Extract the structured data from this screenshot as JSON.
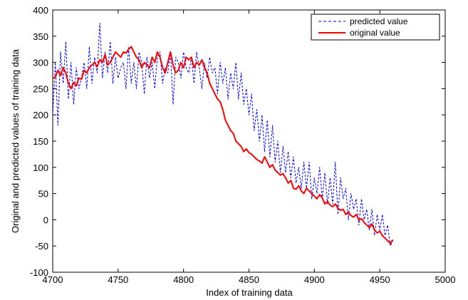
{
  "chart_data": {
    "type": "line",
    "title": "",
    "xlabel": "Index of training data",
    "ylabel": "Original and predicted values of training data",
    "xlim": [
      4700,
      5000
    ],
    "ylim": [
      -100,
      400
    ],
    "xticks": [
      4700,
      4750,
      4800,
      4850,
      4900,
      4950,
      5000
    ],
    "yticks": [
      -100,
      -50,
      0,
      50,
      100,
      150,
      200,
      250,
      300,
      350,
      400
    ],
    "grid": false,
    "legend_position": "top-right",
    "series": [
      {
        "name": "predicted value",
        "color": "#0000ff",
        "style": "dashed",
        "x": [
          4700,
          4702,
          4704,
          4706,
          4708,
          4710,
          4712,
          4714,
          4716,
          4718,
          4720,
          4722,
          4724,
          4726,
          4728,
          4730,
          4732,
          4734,
          4736,
          4738,
          4740,
          4742,
          4744,
          4746,
          4748,
          4750,
          4752,
          4754,
          4756,
          4758,
          4760,
          4762,
          4764,
          4766,
          4768,
          4770,
          4772,
          4774,
          4776,
          4778,
          4780,
          4782,
          4784,
          4786,
          4788,
          4790,
          4792,
          4794,
          4796,
          4798,
          4800,
          4802,
          4804,
          4806,
          4808,
          4810,
          4812,
          4814,
          4816,
          4818,
          4820,
          4822,
          4824,
          4826,
          4828,
          4830,
          4832,
          4834,
          4836,
          4838,
          4840,
          4842,
          4844,
          4846,
          4848,
          4850,
          4852,
          4854,
          4856,
          4858,
          4860,
          4862,
          4864,
          4866,
          4868,
          4870,
          4872,
          4874,
          4876,
          4878,
          4880,
          4882,
          4884,
          4886,
          4888,
          4890,
          4892,
          4894,
          4896,
          4898,
          4900,
          4902,
          4904,
          4906,
          4908,
          4910,
          4912,
          4914,
          4916,
          4918,
          4920,
          4922,
          4924,
          4926,
          4928,
          4930,
          4932,
          4934,
          4936,
          4938,
          4940,
          4942,
          4944,
          4946,
          4948,
          4950,
          4952,
          4954,
          4956,
          4958,
          4960
        ],
        "y": [
          200,
          300,
          180,
          320,
          260,
          340,
          230,
          300,
          220,
          290,
          250,
          270,
          300,
          250,
          330,
          260,
          310,
          280,
          375,
          270,
          320,
          280,
          340,
          260,
          310,
          270,
          290,
          300,
          250,
          330,
          260,
          300,
          250,
          320,
          300,
          240,
          310,
          270,
          300,
          250,
          310,
          320,
          260,
          290,
          280,
          320,
          220,
          310,
          300,
          270,
          320,
          290,
          280,
          310,
          260,
          320,
          290,
          250,
          300,
          270,
          310,
          280,
          290,
          240,
          300,
          260,
          290,
          230,
          280,
          250,
          300,
          230,
          280,
          220,
          250,
          200,
          240,
          170,
          210,
          150,
          200,
          130,
          190,
          120,
          180,
          110,
          150,
          90,
          140,
          90,
          130,
          80,
          120,
          70,
          100,
          60,
          110,
          60,
          110,
          40,
          80,
          50,
          100,
          40,
          90,
          30,
          80,
          30,
          110,
          10,
          80,
          40,
          60,
          0,
          50,
          20,
          40,
          -10,
          40,
          0,
          20,
          -20,
          20,
          -30,
          10,
          -20,
          10,
          -30,
          -10,
          -50,
          -40
        ]
      },
      {
        "name": "original value",
        "color": "#ff0000",
        "style": "solid",
        "x": [
          4700,
          4702,
          4704,
          4706,
          4708,
          4710,
          4712,
          4714,
          4716,
          4718,
          4720,
          4722,
          4724,
          4726,
          4728,
          4730,
          4732,
          4734,
          4736,
          4738,
          4740,
          4742,
          4744,
          4746,
          4748,
          4750,
          4752,
          4754,
          4756,
          4758,
          4760,
          4762,
          4764,
          4766,
          4768,
          4770,
          4772,
          4774,
          4776,
          4778,
          4780,
          4782,
          4784,
          4786,
          4788,
          4790,
          4792,
          4794,
          4796,
          4798,
          4800,
          4802,
          4804,
          4806,
          4808,
          4810,
          4812,
          4814,
          4816,
          4818,
          4820,
          4822,
          4824,
          4826,
          4828,
          4830,
          4832,
          4834,
          4836,
          4838,
          4840,
          4842,
          4844,
          4846,
          4848,
          4850,
          4852,
          4854,
          4856,
          4858,
          4860,
          4862,
          4864,
          4866,
          4868,
          4870,
          4872,
          4874,
          4876,
          4878,
          4880,
          4882,
          4884,
          4886,
          4888,
          4890,
          4892,
          4894,
          4896,
          4898,
          4900,
          4902,
          4904,
          4906,
          4908,
          4910,
          4912,
          4914,
          4916,
          4918,
          4920,
          4922,
          4924,
          4926,
          4928,
          4930,
          4932,
          4934,
          4936,
          4938,
          4940,
          4942,
          4944,
          4946,
          4948,
          4950,
          4952,
          4954,
          4956,
          4958,
          4960
        ],
        "y": [
          270,
          272,
          285,
          275,
          290,
          280,
          260,
          250,
          262,
          255,
          270,
          268,
          285,
          280,
          290,
          295,
          300,
          292,
          305,
          300,
          315,
          295,
          300,
          310,
          320,
          315,
          310,
          320,
          318,
          325,
          330,
          320,
          310,
          305,
          290,
          300,
          295,
          290,
          310,
          300,
          320,
          310,
          290,
          280,
          300,
          320,
          295,
          280,
          285,
          300,
          290,
          310,
          305,
          310,
          290,
          300,
          295,
          305,
          290,
          280,
          260,
          250,
          240,
          230,
          225,
          210,
          190,
          180,
          170,
          165,
          150,
          145,
          140,
          130,
          135,
          128,
          125,
          120,
          115,
          112,
          108,
          120,
          110,
          100,
          105,
          95,
          90,
          85,
          88,
          80,
          70,
          75,
          60,
          58,
          65,
          55,
          50,
          60,
          55,
          50,
          45,
          40,
          48,
          42,
          30,
          35,
          28,
          25,
          30,
          22,
          18,
          20,
          10,
          15,
          8,
          5,
          10,
          0,
          2,
          -5,
          -10,
          -15,
          -8,
          -20,
          -25,
          -22,
          -30,
          -35,
          -40,
          -45,
          -38
        ]
      }
    ]
  }
}
